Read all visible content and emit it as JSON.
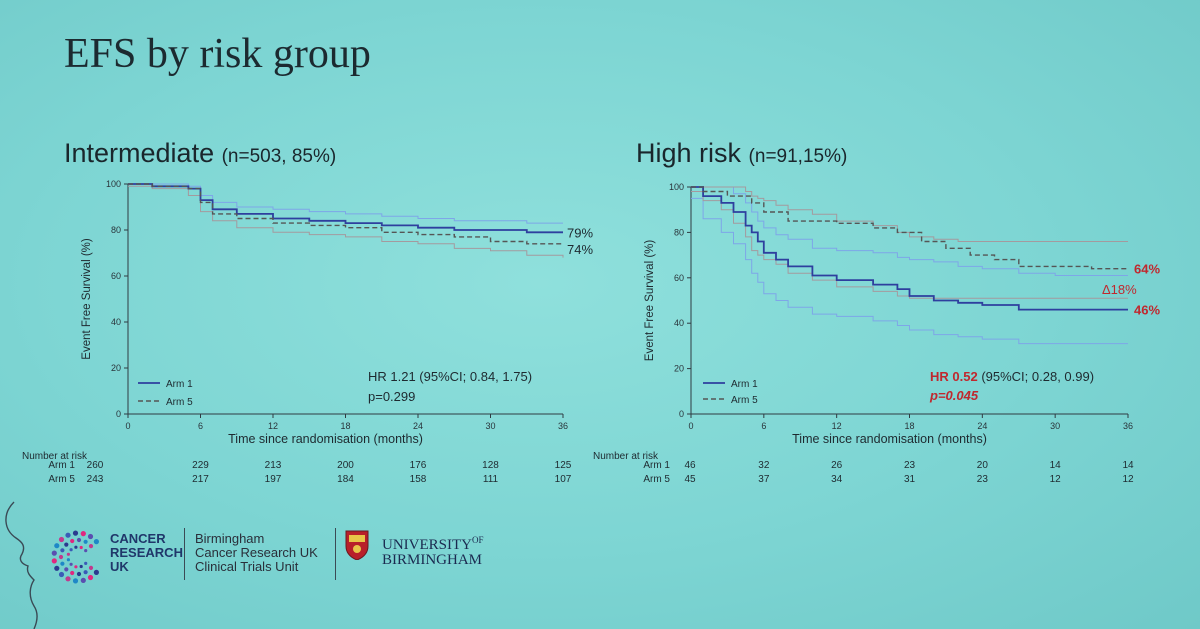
{
  "slide_title": "EFS by risk group",
  "colors": {
    "arm1": "#2e3f9e",
    "arm5": "#555555",
    "ci_arm1": "#7ea6e8",
    "ci_arm5": "#a49a9e",
    "highlight": "#c0282e",
    "text": "#1d2b33"
  },
  "panels": [
    {
      "title": "Intermediate",
      "subtitle": "(n=503, 85%)"
    },
    {
      "title": "High risk",
      "subtitle": "(n=91,15%)"
    }
  ],
  "logos": {
    "cruk": [
      "CANCER",
      "RESEARCH",
      "UK"
    ],
    "bcru": [
      "Birmingham",
      "Cancer Research UK",
      "Clinical Trials Unit"
    ],
    "uob": [
      "UNIVERSITY",
      "OF",
      "BIRMINGHAM"
    ]
  },
  "chart_data": [
    {
      "type": "line",
      "title": "Intermediate (n=503, 85%)",
      "xlabel": "Time since randomisation (months)",
      "ylabel": "Event Free Survival (%)",
      "xlim": [
        0,
        36
      ],
      "ylim": [
        0,
        100
      ],
      "xticks": [
        0,
        6,
        12,
        18,
        24,
        30,
        36
      ],
      "yticks": [
        0,
        20,
        40,
        60,
        80,
        100
      ],
      "series": [
        {
          "name": "Arm 1",
          "style": "solid",
          "x": [
            0,
            2,
            5,
            6,
            7,
            9,
            12,
            15,
            18,
            21,
            24,
            27,
            30,
            33,
            36
          ],
          "y": [
            100,
            99,
            98,
            93,
            89,
            87,
            85,
            84,
            83,
            82,
            81,
            80,
            80,
            79,
            79
          ]
        },
        {
          "name": "Arm 5",
          "style": "dashed",
          "x": [
            0,
            2,
            5,
            6,
            7,
            9,
            12,
            15,
            18,
            21,
            24,
            27,
            30,
            33,
            36
          ],
          "y": [
            100,
            99,
            98,
            92,
            87,
            85,
            83,
            82,
            81,
            79,
            78,
            77,
            75,
            74,
            74
          ]
        }
      ],
      "ci_bands": [
        {
          "upper": [
            100,
            100,
            99,
            95,
            92,
            90,
            89,
            88,
            87,
            86,
            85,
            84,
            84,
            83,
            83
          ],
          "lower": [
            99,
            98,
            95,
            88,
            84,
            81,
            79,
            78,
            77,
            75,
            74,
            72,
            71,
            69,
            68
          ]
        }
      ],
      "end_labels": [
        "79%",
        "74%"
      ],
      "annotation": {
        "hr": "HR 1.21 (95%CI; 0.84, 1.75)",
        "p": "p=0.299"
      },
      "risk_table": {
        "header": "Number at risk",
        "times": [
          0,
          6,
          12,
          18,
          24,
          30,
          36
        ],
        "rows": [
          {
            "label": "Arm 1",
            "values": [
              260,
              229,
              213,
              200,
              176,
              128,
              125
            ]
          },
          {
            "label": "Arm 5",
            "values": [
              243,
              217,
              197,
              184,
              158,
              111,
              107
            ]
          }
        ]
      }
    },
    {
      "type": "line",
      "title": "High risk (n=91,15%)",
      "xlabel": "Time since randomisation (months)",
      "ylabel": "Event Free Survival (%)",
      "xlim": [
        0,
        36
      ],
      "ylim": [
        0,
        100
      ],
      "xticks": [
        0,
        6,
        12,
        18,
        24,
        30,
        36
      ],
      "yticks": [
        0,
        20,
        40,
        60,
        80,
        100
      ],
      "series": [
        {
          "name": "Arm 1",
          "style": "solid",
          "x": [
            0,
            1,
            2.5,
            3.5,
            4.5,
            5,
            5.5,
            6,
            7,
            8,
            10,
            12,
            15,
            17,
            18,
            20,
            22,
            24,
            27,
            30,
            33,
            36
          ],
          "y": [
            100,
            96,
            93,
            89,
            83,
            80,
            76,
            71,
            68,
            65,
            61,
            59,
            57,
            55,
            52,
            50,
            49,
            48,
            46,
            46,
            46,
            46
          ]
        },
        {
          "name": "Arm 5",
          "style": "dashed",
          "x": [
            0,
            1,
            3,
            5,
            6,
            8,
            12,
            15,
            17,
            19,
            21,
            23,
            25,
            27,
            30,
            33,
            36
          ],
          "y": [
            100,
            98,
            96,
            93,
            89,
            85,
            84,
            82,
            80,
            76,
            73,
            70,
            68,
            65,
            65,
            64,
            64
          ]
        }
      ],
      "ci_bands": [
        {
          "upper": [
            100,
            100,
            100,
            97,
            93,
            89,
            85,
            82,
            79,
            77,
            73,
            72,
            71,
            69,
            68,
            67,
            65,
            64,
            62,
            61,
            61,
            61
          ],
          "lower": [
            95,
            86,
            80,
            75,
            68,
            62,
            58,
            53,
            50,
            47,
            44,
            43,
            41,
            39,
            37,
            35,
            34,
            33,
            31,
            31,
            31,
            31
          ]
        },
        {
          "upper": [
            100,
            100,
            100,
            100,
            98,
            96,
            95,
            94,
            92,
            90,
            88,
            85,
            83,
            80,
            78,
            77,
            76,
            76,
            76,
            76,
            76,
            76
          ],
          "lower": [
            98,
            94,
            90,
            84,
            78,
            72,
            70,
            68,
            66,
            62,
            59,
            56,
            54,
            52,
            51,
            51,
            51,
            51,
            51,
            51,
            51,
            51
          ]
        }
      ],
      "end_labels": [
        "64%",
        "Δ18%",
        "46%"
      ],
      "annotation": {
        "hr_prefix": "HR 0.52",
        "hr_rest": " (95%CI; 0.28, 0.99)",
        "p": "p=0.045"
      },
      "risk_table": {
        "header": "Number at risk",
        "times": [
          0,
          6,
          12,
          18,
          24,
          30,
          36
        ],
        "rows": [
          {
            "label": "Arm 1",
            "values": [
              46,
              32,
              26,
              23,
              20,
              14,
              14
            ]
          },
          {
            "label": "Arm 5",
            "values": [
              45,
              37,
              34,
              31,
              23,
              12,
              12
            ]
          }
        ]
      }
    }
  ]
}
